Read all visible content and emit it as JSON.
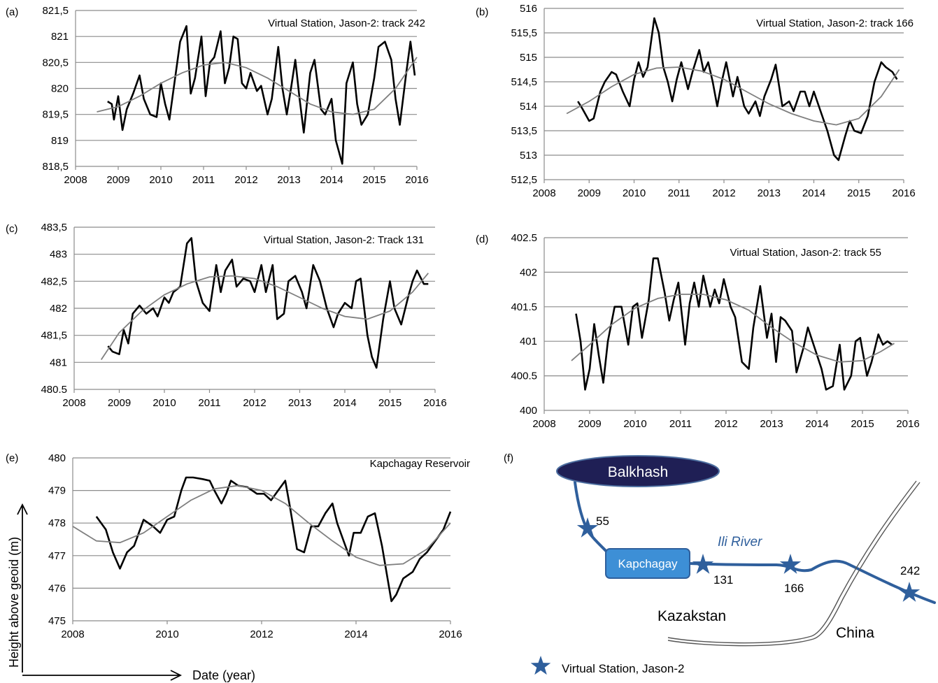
{
  "y_axis_label": "Height above geoid (m)",
  "x_axis_label": "Date (year)",
  "chart_data": [
    {
      "panel": "(a)",
      "type": "line",
      "title": "Virtual Station, Jason-2:  track 242",
      "xlim": [
        2008,
        2016
      ],
      "xticks": [
        "2008",
        "2009",
        "2010",
        "2011",
        "2012",
        "2013",
        "2014",
        "2015",
        "2016"
      ],
      "ylim": [
        818.5,
        821.5
      ],
      "yticks": [
        "818,5",
        "819",
        "819,5",
        "820",
        "820,5",
        "821",
        "821,5"
      ],
      "series": [
        {
          "x": [
            2008.75,
            2008.85,
            2008.9,
            2009.0,
            2009.1,
            2009.2,
            2009.35,
            2009.5,
            2009.6,
            2009.75,
            2009.9,
            2010.0,
            2010.1,
            2010.2,
            2010.3,
            2010.45,
            2010.6,
            2010.7,
            2010.8,
            2010.95,
            2011.05,
            2011.15,
            2011.25,
            2011.4,
            2011.5,
            2011.6,
            2011.7,
            2011.8,
            2011.9,
            2012.0,
            2012.1,
            2012.25,
            2012.35,
            2012.5,
            2012.6,
            2012.75,
            2012.85,
            2012.95,
            2013.05,
            2013.15,
            2013.25,
            2013.35,
            2013.5,
            2013.6,
            2013.75,
            2013.85,
            2014.0,
            2014.1,
            2014.25,
            2014.35,
            2014.5,
            2014.6,
            2014.7,
            2014.85,
            2015.0,
            2015.1,
            2015.25,
            2015.4,
            2015.5,
            2015.6,
            2015.75,
            2015.85,
            2015.95
          ],
          "y": [
            819.75,
            819.7,
            819.4,
            819.85,
            819.2,
            819.6,
            819.9,
            820.25,
            819.8,
            819.5,
            819.45,
            820.1,
            819.7,
            819.4,
            820.0,
            820.9,
            821.2,
            819.9,
            820.2,
            821.0,
            819.85,
            820.5,
            820.6,
            821.1,
            820.1,
            820.4,
            821.0,
            820.95,
            820.1,
            820.0,
            820.3,
            819.95,
            820.05,
            819.5,
            819.8,
            820.8,
            820.0,
            819.5,
            820.0,
            820.55,
            819.8,
            819.15,
            820.3,
            820.55,
            819.6,
            819.5,
            819.8,
            819.0,
            818.55,
            820.1,
            820.5,
            819.7,
            819.3,
            819.5,
            820.2,
            820.8,
            820.9,
            820.55,
            819.8,
            819.3,
            820.3,
            820.9,
            820.25
          ],
          "name": ""
        },
        {
          "x": [
            2008.5,
            2009.0,
            2009.5,
            2010.0,
            2010.5,
            2011.0,
            2011.5,
            2012.0,
            2012.5,
            2013.0,
            2013.5,
            2014.0,
            2014.5,
            2015.0,
            2015.5,
            2016.0
          ],
          "y": [
            819.55,
            819.65,
            819.85,
            820.1,
            820.3,
            820.45,
            820.5,
            820.4,
            820.2,
            819.95,
            819.7,
            819.55,
            819.5,
            819.6,
            820.0,
            820.6
          ],
          "name": ""
        }
      ]
    },
    {
      "panel": "(b)",
      "type": "line",
      "title": "Virtual Station, Jason-2: track 166",
      "xlim": [
        2008,
        2016
      ],
      "xticks": [
        "2008",
        "2009",
        "2010",
        "2011",
        "2012",
        "2013",
        "2014",
        "2015",
        "2016"
      ],
      "ylim": [
        512.5,
        516
      ],
      "yticks": [
        "512,5",
        "513",
        "513,5",
        "514",
        "514,5",
        "515",
        "515,5",
        "516"
      ],
      "series": [
        {
          "x": [
            2008.75,
            2008.85,
            2009.0,
            2009.1,
            2009.25,
            2009.35,
            2009.5,
            2009.6,
            2009.75,
            2009.9,
            2010.0,
            2010.1,
            2010.2,
            2010.3,
            2010.45,
            2010.55,
            2010.65,
            2010.75,
            2010.85,
            2010.95,
            2011.05,
            2011.2,
            2011.3,
            2011.45,
            2011.55,
            2011.65,
            2011.75,
            2011.85,
            2011.95,
            2012.05,
            2012.2,
            2012.3,
            2012.45,
            2012.55,
            2012.7,
            2012.8,
            2012.9,
            2013.05,
            2013.15,
            2013.3,
            2013.45,
            2013.55,
            2013.7,
            2013.8,
            2013.9,
            2014.0,
            2014.15,
            2014.3,
            2014.45,
            2014.55,
            2014.7,
            2014.8,
            2014.9,
            2015.05,
            2015.2,
            2015.35,
            2015.5,
            2015.6,
            2015.75,
            2015.85
          ],
          "y": [
            514.1,
            513.95,
            513.7,
            513.75,
            514.3,
            514.5,
            514.7,
            514.65,
            514.3,
            514.0,
            514.55,
            514.9,
            514.6,
            514.8,
            515.8,
            515.5,
            514.8,
            514.5,
            514.1,
            514.55,
            514.9,
            514.35,
            514.7,
            515.15,
            514.7,
            514.9,
            514.5,
            514.0,
            514.5,
            514.9,
            514.2,
            514.6,
            514.0,
            513.85,
            514.1,
            513.8,
            514.2,
            514.55,
            514.85,
            514.0,
            514.1,
            513.9,
            514.3,
            514.3,
            514.0,
            514.3,
            513.9,
            513.5,
            513.0,
            512.9,
            513.4,
            513.7,
            513.5,
            513.45,
            513.8,
            514.5,
            514.9,
            514.8,
            514.7,
            514.55
          ],
          "name": ""
        },
        {
          "x": [
            2008.5,
            2009.0,
            2009.5,
            2010.0,
            2010.5,
            2011.0,
            2011.5,
            2012.0,
            2012.5,
            2013.0,
            2013.5,
            2014.0,
            2014.5,
            2015.0,
            2015.5,
            2015.9
          ],
          "y": [
            513.85,
            514.1,
            514.4,
            514.65,
            514.78,
            514.8,
            514.72,
            514.55,
            514.3,
            514.05,
            513.85,
            513.7,
            513.62,
            513.75,
            514.2,
            514.75
          ],
          "name": ""
        }
      ]
    },
    {
      "panel": "(c)",
      "type": "line",
      "title": "Virtual Station, Jason-2: Track 131",
      "xlim": [
        2008,
        2016
      ],
      "xticks": [
        "2008",
        "2009",
        "2010",
        "2011",
        "2012",
        "2013",
        "2014",
        "2015",
        "2016"
      ],
      "ylim": [
        480.5,
        483.5
      ],
      "yticks": [
        "480.5",
        "481",
        "481,5",
        "482",
        "482,5",
        "483",
        "483,5"
      ],
      "series": [
        {
          "x": [
            2008.75,
            2008.85,
            2009.0,
            2009.1,
            2009.2,
            2009.3,
            2009.45,
            2009.6,
            2009.75,
            2009.85,
            2010.0,
            2010.1,
            2010.2,
            2010.35,
            2010.5,
            2010.6,
            2010.7,
            2010.85,
            2011.0,
            2011.15,
            2011.25,
            2011.35,
            2011.5,
            2011.6,
            2011.75,
            2011.9,
            2012.0,
            2012.15,
            2012.25,
            2012.4,
            2012.5,
            2012.65,
            2012.75,
            2012.9,
            2013.05,
            2013.15,
            2013.3,
            2013.45,
            2013.6,
            2013.75,
            2013.85,
            2014.0,
            2014.15,
            2014.25,
            2014.35,
            2014.5,
            2014.6,
            2014.7,
            2014.85,
            2015.0,
            2015.1,
            2015.25,
            2015.4,
            2015.5,
            2015.6,
            2015.75,
            2015.85
          ],
          "y": [
            481.3,
            481.2,
            481.15,
            481.6,
            481.35,
            481.9,
            482.05,
            481.9,
            482.0,
            481.85,
            482.2,
            482.1,
            482.3,
            482.4,
            483.2,
            483.3,
            482.5,
            482.1,
            481.95,
            482.8,
            482.3,
            482.7,
            482.9,
            482.4,
            482.55,
            482.5,
            482.3,
            482.8,
            482.3,
            482.8,
            481.8,
            481.9,
            482.5,
            482.6,
            482.3,
            482.0,
            482.8,
            482.5,
            482.0,
            481.65,
            481.9,
            482.1,
            482.0,
            482.5,
            482.55,
            481.5,
            481.1,
            480.9,
            481.8,
            482.5,
            482.0,
            481.7,
            482.2,
            482.5,
            482.7,
            482.45,
            482.45
          ],
          "name": ""
        },
        {
          "x": [
            2008.6,
            2009.0,
            2009.5,
            2010.0,
            2010.5,
            2011.0,
            2011.5,
            2012.0,
            2012.5,
            2013.0,
            2013.5,
            2014.0,
            2014.5,
            2015.0,
            2015.5,
            2015.85
          ],
          "y": [
            481.05,
            481.55,
            481.95,
            482.25,
            482.45,
            482.58,
            482.6,
            482.55,
            482.4,
            482.2,
            482.0,
            481.85,
            481.8,
            481.95,
            482.3,
            482.65
          ],
          "name": ""
        }
      ]
    },
    {
      "panel": "(d)",
      "type": "line",
      "title": "Virtual Station, Jason-2: track 55",
      "xlim": [
        2008,
        2016
      ],
      "xticks": [
        "2008",
        "2009",
        "2010",
        "2011",
        "2012",
        "2013",
        "2014",
        "2015",
        "2016"
      ],
      "ylim": [
        400,
        402.5
      ],
      "yticks": [
        "400",
        "400.5",
        "401",
        "401.5",
        "402",
        "402.5"
      ],
      "series": [
        {
          "x": [
            2008.7,
            2008.8,
            2008.9,
            2009.0,
            2009.1,
            2009.2,
            2009.3,
            2009.4,
            2009.55,
            2009.7,
            2009.85,
            2009.95,
            2010.05,
            2010.15,
            2010.3,
            2010.4,
            2010.5,
            2010.65,
            2010.75,
            2010.85,
            2010.95,
            2011.1,
            2011.2,
            2011.3,
            2011.4,
            2011.5,
            2011.65,
            2011.75,
            2011.85,
            2011.95,
            2012.1,
            2012.2,
            2012.35,
            2012.5,
            2012.6,
            2012.75,
            2012.9,
            2013.0,
            2013.1,
            2013.2,
            2013.3,
            2013.45,
            2013.55,
            2013.7,
            2013.8,
            2013.95,
            2014.1,
            2014.2,
            2014.35,
            2014.5,
            2014.6,
            2014.75,
            2014.85,
            2014.95,
            2015.1,
            2015.2,
            2015.35,
            2015.45,
            2015.55,
            2015.65
          ],
          "y": [
            401.4,
            401.0,
            400.3,
            400.6,
            401.25,
            400.8,
            400.4,
            401.0,
            401.5,
            401.5,
            400.95,
            401.5,
            401.55,
            401.05,
            401.6,
            402.2,
            402.2,
            401.7,
            401.3,
            401.6,
            401.85,
            400.95,
            401.55,
            401.85,
            401.5,
            401.95,
            401.5,
            401.75,
            401.55,
            401.9,
            401.5,
            401.35,
            400.7,
            400.6,
            401.2,
            401.8,
            401.05,
            401.4,
            400.7,
            401.35,
            401.3,
            401.15,
            400.55,
            400.9,
            401.2,
            400.9,
            400.6,
            400.3,
            400.35,
            400.95,
            400.3,
            400.5,
            401.0,
            401.05,
            400.5,
            400.7,
            401.1,
            400.95,
            401.0,
            400.95
          ],
          "name": ""
        },
        {
          "x": [
            2008.6,
            2009.0,
            2009.5,
            2010.0,
            2010.5,
            2011.0,
            2011.5,
            2012.0,
            2012.5,
            2013.0,
            2013.5,
            2014.0,
            2014.5,
            2015.0,
            2015.4,
            2015.7
          ],
          "y": [
            400.72,
            400.95,
            401.25,
            401.48,
            401.62,
            401.68,
            401.68,
            401.6,
            401.45,
            401.2,
            400.98,
            400.8,
            400.7,
            400.72,
            400.85,
            400.97
          ],
          "name": ""
        }
      ]
    },
    {
      "panel": "(e)",
      "type": "line",
      "title": "Kapchagay Reservoir",
      "xlim": [
        2008,
        2016
      ],
      "xticks": [
        "2008",
        "2010",
        "2012",
        "2014",
        "2016"
      ],
      "ylim": [
        475,
        480
      ],
      "yticks": [
        "475",
        "476",
        "477",
        "478",
        "479",
        "480"
      ],
      "series": [
        {
          "x": [
            2008.5,
            2008.7,
            2008.85,
            2009.0,
            2009.15,
            2009.3,
            2009.5,
            2009.7,
            2009.85,
            2010.0,
            2010.15,
            2010.3,
            2010.4,
            2010.55,
            2010.75,
            2010.9,
            2011.0,
            2011.15,
            2011.25,
            2011.35,
            2011.5,
            2011.7,
            2011.9,
            2012.05,
            2012.2,
            2012.35,
            2012.5,
            2012.6,
            2012.75,
            2012.9,
            2013.05,
            2013.2,
            2013.35,
            2013.5,
            2013.6,
            2013.75,
            2013.85,
            2013.95,
            2014.1,
            2014.25,
            2014.4,
            2014.55,
            2014.75,
            2014.85,
            2015.0,
            2015.2,
            2015.35,
            2015.5,
            2015.7,
            2015.85,
            2016.0
          ],
          "y": [
            478.2,
            477.8,
            477.1,
            476.6,
            477.1,
            477.3,
            478.1,
            477.9,
            477.7,
            478.1,
            478.2,
            479.0,
            479.4,
            479.4,
            479.35,
            479.3,
            479.0,
            478.6,
            478.9,
            479.3,
            479.15,
            479.1,
            478.9,
            478.9,
            478.7,
            479.0,
            479.3,
            478.5,
            477.2,
            477.1,
            477.9,
            477.9,
            478.3,
            478.6,
            478.0,
            477.4,
            477.0,
            477.7,
            477.7,
            478.2,
            478.3,
            477.3,
            475.6,
            475.8,
            476.3,
            476.5,
            476.9,
            477.1,
            477.5,
            477.8,
            478.35
          ],
          "name": ""
        },
        {
          "x": [
            2008.0,
            2008.5,
            2009.0,
            2009.5,
            2010.0,
            2010.5,
            2011.0,
            2011.5,
            2012.0,
            2012.5,
            2013.0,
            2013.5,
            2014.0,
            2014.5,
            2015.0,
            2015.5,
            2016.0
          ],
          "y": [
            477.9,
            477.45,
            477.4,
            477.7,
            478.2,
            478.7,
            479.05,
            479.15,
            479.0,
            478.6,
            478.0,
            477.45,
            476.95,
            476.7,
            476.75,
            477.2,
            478.0
          ],
          "name": ""
        }
      ]
    }
  ],
  "map": {
    "panel": "(f)",
    "lake": "Balkhash",
    "reservoir": "Kapchagay",
    "river": "Ili River",
    "station_labels": [
      "55",
      "131",
      "166",
      "242"
    ],
    "country_left": "Kazakstan",
    "country_right": "China",
    "legend": "Virtual Station, Jason-2",
    "colors": {
      "lake": "#1f1f55",
      "river": "#2f5f9c",
      "reservoir": "#3d8fd6",
      "station": "#2f5f9c"
    }
  }
}
